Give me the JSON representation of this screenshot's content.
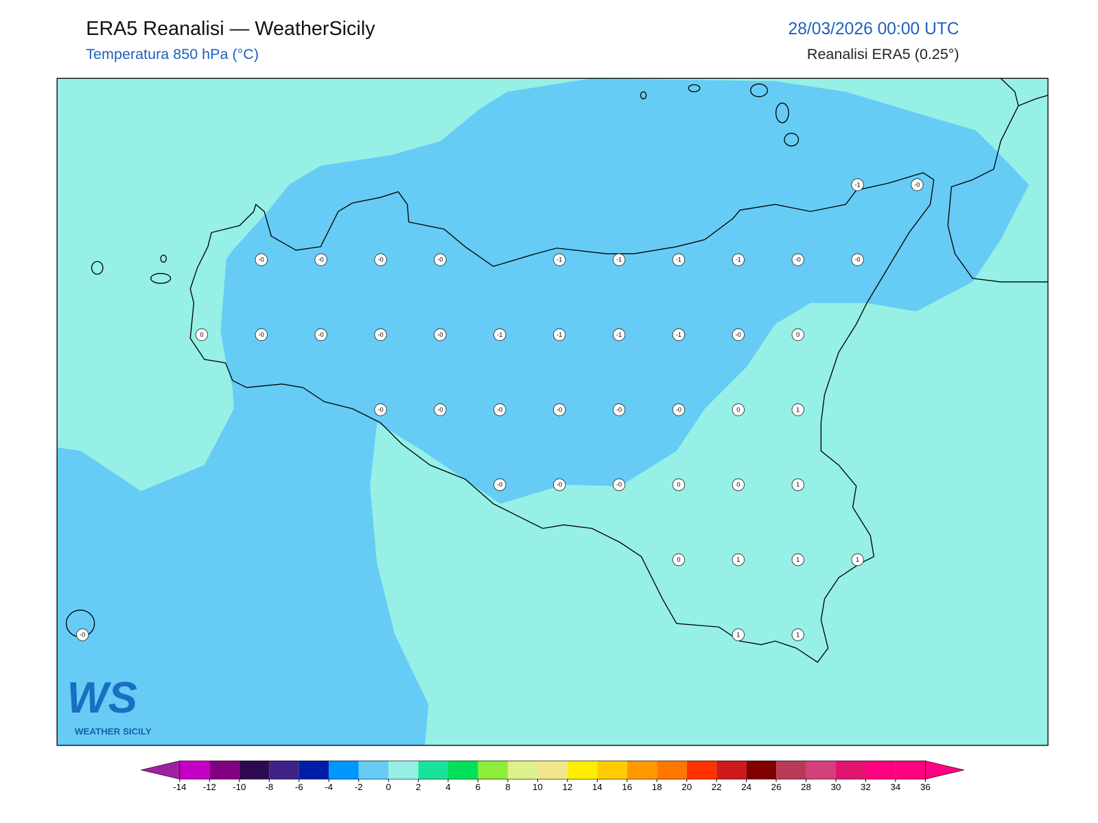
{
  "header": {
    "title": "ERA5 Reanalisi — WeatherSicily",
    "subtitle": "Temperatura 850 hPa (°C)",
    "date": "28/03/2026 00:00 UTC",
    "source": "Reanalisi ERA5 (0.25°)"
  },
  "logo": {
    "mark": "WS",
    "name": "WEATHER SICILY"
  },
  "map": {
    "grid": [
      [
        null,
        null,
        null,
        null,
        null,
        null,
        null,
        null,
        null,
        null,
        null,
        null,
        null,
        "-1",
        "-0"
      ],
      [
        null,
        null,
        null,
        "-0",
        "-0",
        "-0",
        "-0",
        null,
        "-1",
        "-1",
        "-1",
        "-1",
        "-0",
        "-0",
        null
      ],
      [
        null,
        null,
        "0",
        "-0",
        "-0",
        "-0",
        "-0",
        "-1",
        "-1",
        "-1",
        "-1",
        "-0",
        "0",
        null,
        null
      ],
      [
        null,
        null,
        null,
        null,
        null,
        "-0",
        "-0",
        "-0",
        "-0",
        "-0",
        "-0",
        "0",
        "1",
        null,
        null
      ],
      [
        null,
        null,
        null,
        null,
        null,
        null,
        null,
        "-0",
        "-0",
        "-0",
        "0",
        "0",
        "1",
        null,
        null
      ],
      [
        null,
        null,
        null,
        null,
        null,
        null,
        null,
        null,
        null,
        null,
        "0",
        "1",
        "1",
        "1",
        null
      ],
      [
        "-0",
        null,
        null,
        null,
        null,
        null,
        null,
        null,
        null,
        null,
        null,
        "1",
        "1",
        null,
        null
      ]
    ]
  },
  "colorbar": {
    "levels": [
      -14,
      -12,
      -10,
      -8,
      -6,
      -4,
      -2,
      0,
      2,
      4,
      6,
      8,
      10,
      12,
      14,
      16,
      18,
      20,
      22,
      24,
      26,
      28,
      30,
      32,
      34,
      36
    ],
    "colors": [
      "#c400c4",
      "#800080",
      "#2e0a50",
      "#3d2288",
      "#001ea8",
      "#0096ff",
      "#66ccf5",
      "#96f0e6",
      "#19e39b",
      "#00e05a",
      "#8ced3a",
      "#dcf08c",
      "#f0e68c",
      "#ffee00",
      "#ffcc00",
      "#ff9900",
      "#ff7700",
      "#ff3300",
      "#cc1a1a",
      "#800000",
      "#b83a55",
      "#d4407a",
      "#e0146e",
      "#ff0080",
      "#ff0080"
    ],
    "under": "#a020a0",
    "over": "#ff0080"
  }
}
